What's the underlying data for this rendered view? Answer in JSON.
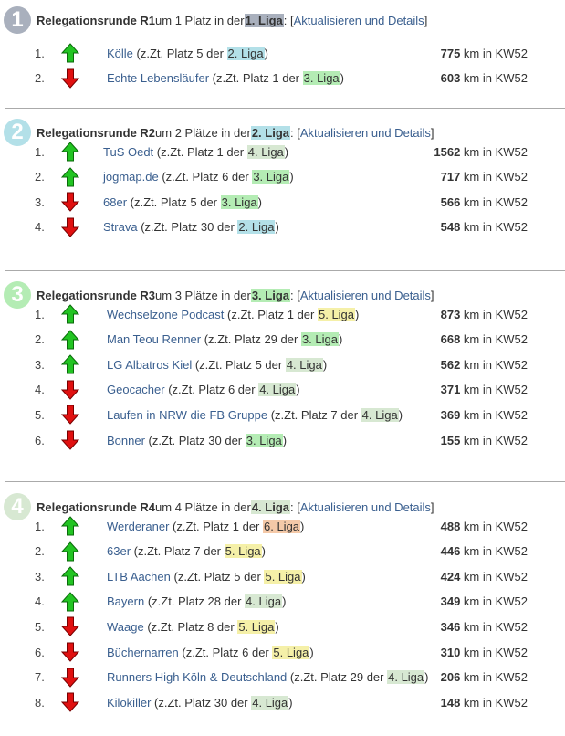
{
  "colors": {
    "liga1": "#a9b0bd",
    "liga2": "#b3e0e8",
    "liga3": "#b4ecb4",
    "liga4": "#d7e8d2",
    "liga5": "#f5f0a8",
    "liga6": "#f4c9a8",
    "link": "#3a5f8f",
    "arrow_up": "#22c422",
    "arrow_down": "#e01010"
  },
  "common": {
    "link_label": "Aktualisieren und Details",
    "km_suffix": " km in KW52",
    "current_prefix": " (z.Zt. Platz ",
    "current_mid": " der "
  },
  "sections": [
    {
      "badge": "1",
      "title": "Relegationsrunde R1",
      "text": " um 1 Platz in der ",
      "liga": "1. Liga",
      "liga_num": 1,
      "teams": [
        {
          "rank": "1.",
          "dir": "up",
          "name": "Kölle",
          "place": "5",
          "liga": "2. Liga",
          "liga_num": 2,
          "km": "775"
        },
        {
          "rank": "2.",
          "dir": "down",
          "name": "Echte Lebensläufer",
          "place": "1",
          "liga": "3. Liga",
          "liga_num": 3,
          "km": "603"
        }
      ]
    },
    {
      "badge": "2",
      "title": "Relegationsrunde R2",
      "text": " um 2 Plätze in der ",
      "liga": "2. Liga",
      "liga_num": 2,
      "teams": [
        {
          "rank": "1.",
          "dir": "up",
          "name": "TuS Oedt",
          "place": "1",
          "liga": "4. Liga",
          "liga_num": 4,
          "km": "1562"
        },
        {
          "rank": "2.",
          "dir": "up",
          "name": "jogmap.de",
          "place": "6",
          "liga": "3. Liga",
          "liga_num": 3,
          "km": "717"
        },
        {
          "rank": "3.",
          "dir": "down",
          "name": "68er",
          "place": "5",
          "liga": "3. Liga",
          "liga_num": 3,
          "km": "566"
        },
        {
          "rank": "4.",
          "dir": "down",
          "name": "Strava",
          "place": "30",
          "liga": "2. Liga",
          "liga_num": 2,
          "km": "548"
        }
      ]
    },
    {
      "badge": "3",
      "title": "Relegationsrunde R3",
      "text": " um 3 Plätze in der ",
      "liga": "3. Liga",
      "liga_num": 3,
      "teams": [
        {
          "rank": "1.",
          "dir": "up",
          "name": "Wechselzone Podcast",
          "place": "1",
          "liga": "5. Liga",
          "liga_num": 5,
          "km": "873"
        },
        {
          "rank": "2.",
          "dir": "up",
          "name": "Man Teou Renner",
          "place": "29",
          "liga": "3. Liga",
          "liga_num": 3,
          "km": "668"
        },
        {
          "rank": "3.",
          "dir": "up",
          "name": "LG Albatros Kiel",
          "place": "5",
          "liga": "4. Liga",
          "liga_num": 4,
          "km": "562"
        },
        {
          "rank": "4.",
          "dir": "down",
          "name": "Geocacher",
          "place": "6",
          "liga": "4. Liga",
          "liga_num": 4,
          "km": "371"
        },
        {
          "rank": "5.",
          "dir": "down",
          "name": "Laufen in NRW die FB Gruppe",
          "place": "7",
          "liga": "4. Liga",
          "liga_num": 4,
          "km": "369"
        },
        {
          "rank": "6.",
          "dir": "down",
          "name": "Bonner",
          "place": "30",
          "liga": "3. Liga",
          "liga_num": 3,
          "km": "155"
        }
      ]
    },
    {
      "badge": "4",
      "title": "Relegationsrunde R4",
      "text": " um 4 Plätze in der ",
      "liga": "4. Liga",
      "liga_num": 4,
      "teams": [
        {
          "rank": "1.",
          "dir": "up",
          "name": "Werderaner",
          "place": "1",
          "liga": "6. Liga",
          "liga_num": 6,
          "km": "488"
        },
        {
          "rank": "2.",
          "dir": "up",
          "name": "63er",
          "place": "7",
          "liga": "5. Liga",
          "liga_num": 5,
          "km": "446"
        },
        {
          "rank": "3.",
          "dir": "up",
          "name": "LTB Aachen",
          "place": "5",
          "liga": "5. Liga",
          "liga_num": 5,
          "km": "424"
        },
        {
          "rank": "4.",
          "dir": "up",
          "name": "Bayern",
          "place": "28",
          "liga": "4. Liga",
          "liga_num": 4,
          "km": "349"
        },
        {
          "rank": "5.",
          "dir": "down",
          "name": "Waage",
          "place": "8",
          "liga": "5. Liga",
          "liga_num": 5,
          "km": "346"
        },
        {
          "rank": "6.",
          "dir": "down",
          "name": "Büchernarren",
          "place": "6",
          "liga": "5. Liga",
          "liga_num": 5,
          "km": "310"
        },
        {
          "rank": "7.",
          "dir": "down",
          "name": "Runners High Köln & Deutschland",
          "place": "29",
          "liga": "4. Liga",
          "liga_num": 4,
          "km": "206"
        },
        {
          "rank": "8.",
          "dir": "down",
          "name": "Kilokiller",
          "place": "30",
          "liga": "4. Liga",
          "liga_num": 4,
          "km": "148"
        }
      ]
    }
  ]
}
